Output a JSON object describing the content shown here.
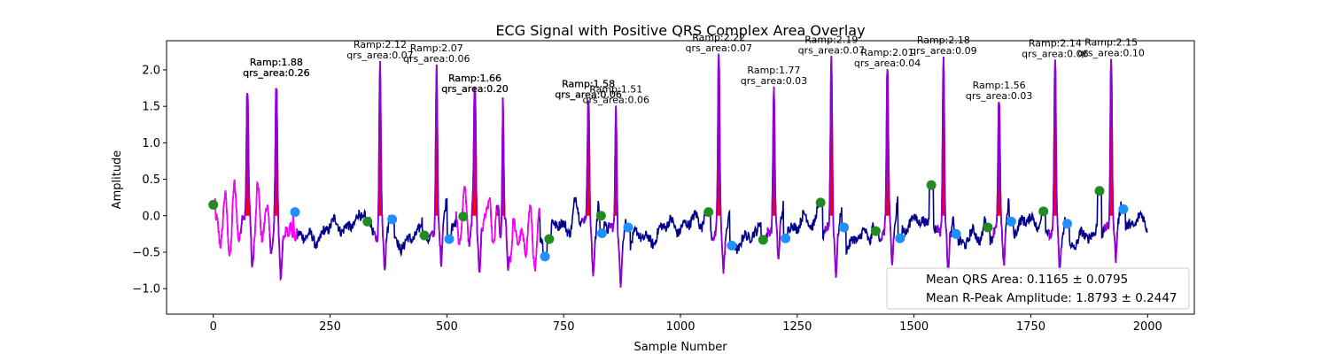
{
  "chart_data": {
    "type": "line",
    "title": "ECG Signal with Positive QRS Complex Area Overlay",
    "xlabel": "Sample Number",
    "ylabel": "Amplitude",
    "xlim": [
      -100,
      2100
    ],
    "ylim": [
      -1.35,
      2.4
    ],
    "xticks": [
      0,
      250,
      500,
      750,
      1000,
      1250,
      1500,
      1750,
      2000
    ],
    "yticks": [
      -1.0,
      -0.5,
      0.0,
      0.5,
      1.0,
      1.5,
      2.0
    ],
    "grid": false,
    "colors": {
      "signal": "#00008b",
      "qrs_segment": "#9400d3",
      "noisy_segment": "#ff00ff",
      "area_fill": "#ff0000",
      "onset_marker": "#228b22",
      "offset_marker": "#1e90ff"
    },
    "r_peaks": [
      {
        "x": 73,
        "y": 1.68,
        "ramp": "1.88",
        "qrs_area": "0.26"
      },
      {
        "x": 135,
        "y": 1.74,
        "ramp": "1.88",
        "qrs_area": "0.26"
      },
      {
        "x": 357,
        "y": 2.12,
        "ramp": "2.12",
        "qrs_area": "0.07"
      },
      {
        "x": 478,
        "y": 2.07,
        "ramp": "2.07",
        "qrs_area": "0.06"
      },
      {
        "x": 560,
        "y": 1.66,
        "ramp": "1.66",
        "qrs_area": "0.20"
      },
      {
        "x": 620,
        "y": 1.62,
        "ramp": "1.66",
        "qrs_area": "0.20"
      },
      {
        "x": 803,
        "y": 1.58,
        "ramp": "1.58",
        "qrs_area": "0.06"
      },
      {
        "x": 862,
        "y": 1.51,
        "ramp": "1.51",
        "qrs_area": "0.06"
      },
      {
        "x": 1082,
        "y": 2.22,
        "ramp": "2.22",
        "qrs_area": "0.07"
      },
      {
        "x": 1200,
        "y": 1.77,
        "ramp": "1.77",
        "qrs_area": "0.03"
      },
      {
        "x": 1323,
        "y": 2.19,
        "ramp": "2.19",
        "qrs_area": "0.07"
      },
      {
        "x": 1443,
        "y": 2.01,
        "ramp": "2.01",
        "qrs_area": "0.04"
      },
      {
        "x": 1563,
        "y": 2.18,
        "ramp": "2.18",
        "qrs_area": "0.09"
      },
      {
        "x": 1682,
        "y": 1.56,
        "ramp": "1.56",
        "qrs_area": "0.03"
      },
      {
        "x": 1802,
        "y": 2.14,
        "ramp": "2.14",
        "qrs_area": "0.06"
      },
      {
        "x": 1922,
        "y": 2.15,
        "ramp": "2.15",
        "qrs_area": "0.10"
      }
    ],
    "annotations": [
      {
        "x": 135,
        "y": 1.88,
        "lines": [
          "Ramp:1.88",
          "qrs_area:0.26"
        ],
        "bold": true
      },
      {
        "x": 357,
        "y": 2.12,
        "lines": [
          "Ramp:2.12",
          "qrs_area:0.07"
        ],
        "bold": false
      },
      {
        "x": 478,
        "y": 2.07,
        "lines": [
          "Ramp:2.07",
          "qrs_area:0.06"
        ],
        "bold": false
      },
      {
        "x": 560,
        "y": 1.66,
        "lines": [
          "Ramp:1.66",
          "qrs_area:0.20"
        ],
        "bold": true
      },
      {
        "x": 803,
        "y": 1.58,
        "lines": [
          "Ramp:1.58",
          "qrs_area:0.06"
        ],
        "bold": true
      },
      {
        "x": 862,
        "y": 1.51,
        "lines": [
          "Ramp:1.51",
          "qrs_area:0.06"
        ],
        "bold": false
      },
      {
        "x": 1082,
        "y": 2.22,
        "lines": [
          "Ramp:2.22",
          "qrs_area:0.07"
        ],
        "bold": false
      },
      {
        "x": 1200,
        "y": 1.77,
        "lines": [
          "Ramp:1.77",
          "qrs_area:0.03"
        ],
        "bold": false
      },
      {
        "x": 1323,
        "y": 2.19,
        "lines": [
          "Ramp:2.19",
          "qrs_area:0.07"
        ],
        "bold": false
      },
      {
        "x": 1443,
        "y": 2.01,
        "lines": [
          "Ramp:2.01",
          "qrs_area:0.04"
        ],
        "bold": false
      },
      {
        "x": 1563,
        "y": 2.18,
        "lines": [
          "Ramp:2.18",
          "qrs_area:0.09"
        ],
        "bold": false
      },
      {
        "x": 1682,
        "y": 1.56,
        "lines": [
          "Ramp:1.56",
          "qrs_area:0.03"
        ],
        "bold": false
      },
      {
        "x": 1802,
        "y": 2.14,
        "lines": [
          "Ramp:2.14",
          "qrs_area:0.06"
        ],
        "bold": false
      },
      {
        "x": 1922,
        "y": 2.15,
        "lines": [
          "Ramp:2.15",
          "qrs_area:0.10"
        ],
        "bold": false
      }
    ],
    "qrs_onsets": [
      {
        "x": 0,
        "y": 0.15
      },
      {
        "x": 330,
        "y": -0.08
      },
      {
        "x": 452,
        "y": -0.27
      },
      {
        "x": 535,
        "y": -0.01
      },
      {
        "x": 719,
        "y": -0.32
      },
      {
        "x": 830,
        "y": 0.0
      },
      {
        "x": 1060,
        "y": 0.05
      },
      {
        "x": 1177,
        "y": -0.33
      },
      {
        "x": 1300,
        "y": 0.18
      },
      {
        "x": 1418,
        "y": -0.21
      },
      {
        "x": 1537,
        "y": 0.42
      },
      {
        "x": 1658,
        "y": -0.16
      },
      {
        "x": 1777,
        "y": 0.06
      },
      {
        "x": 1897,
        "y": 0.34
      }
    ],
    "qrs_offsets": [
      {
        "x": 175,
        "y": 0.05
      },
      {
        "x": 383,
        "y": -0.05
      },
      {
        "x": 505,
        "y": -0.32
      },
      {
        "x": 710,
        "y": -0.56
      },
      {
        "x": 832,
        "y": -0.24
      },
      {
        "x": 888,
        "y": -0.16
      },
      {
        "x": 1110,
        "y": -0.41
      },
      {
        "x": 1225,
        "y": -0.31
      },
      {
        "x": 1350,
        "y": -0.16
      },
      {
        "x": 1470,
        "y": -0.31
      },
      {
        "x": 1590,
        "y": -0.25
      },
      {
        "x": 1708,
        "y": -0.08
      },
      {
        "x": 1828,
        "y": -0.11
      },
      {
        "x": 1948,
        "y": 0.09
      }
    ],
    "noisy_regions": [
      [
        0,
        180
      ],
      [
        520,
        700
      ]
    ],
    "legend": {
      "placement": "lower right",
      "entries": [
        "Mean QRS Area: 0.1165 ± 0.0795",
        "Mean R-Peak Amplitude: 1.8793 ± 0.2447"
      ]
    }
  }
}
